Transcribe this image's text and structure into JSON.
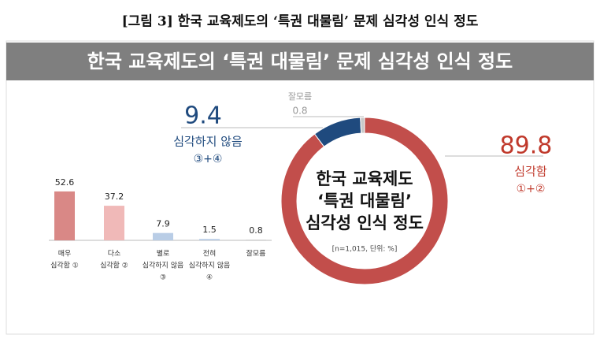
{
  "figure_caption": "[그림 3] 한국 교육제도의 ‘특권 대물림’ 문제 심각성 인식 정도",
  "title": "한국 교육제도의 ‘특권 대물림’ 문제 심각성 인식 정도",
  "chart_data": [
    {
      "type": "pie",
      "donut": true,
      "center_text": [
        "한국 교육제도",
        "‘특권 대물림’",
        "심각성 인식 정도"
      ],
      "note": "[n=1,015, 단위: %]",
      "categories": [
        "심각함",
        "심각하지 않음",
        "잘모름"
      ],
      "codes": [
        "①+②",
        "③+④",
        null
      ],
      "values": [
        89.8,
        9.4,
        0.8
      ],
      "colors": [
        "#c24e4b",
        "#1f4a7e",
        "#c8c8c8"
      ],
      "label_colors": [
        "#c0392b",
        "#1f4a7e",
        "#999999"
      ]
    },
    {
      "type": "bar",
      "categories": [
        [
          "매우",
          "심각함 ①"
        ],
        [
          "다소",
          "심각함 ②"
        ],
        [
          "별로",
          "심각하지 않음",
          "③"
        ],
        [
          "전혀",
          "심각하지 않음",
          "④"
        ],
        [
          "잘모름"
        ]
      ],
      "values": [
        52.6,
        37.2,
        7.9,
        1.5,
        0.8
      ],
      "colors": [
        "#d98886",
        "#f0b9b8",
        "#b9cde6",
        "#b9cde6",
        "#cfcfcf"
      ]
    }
  ]
}
